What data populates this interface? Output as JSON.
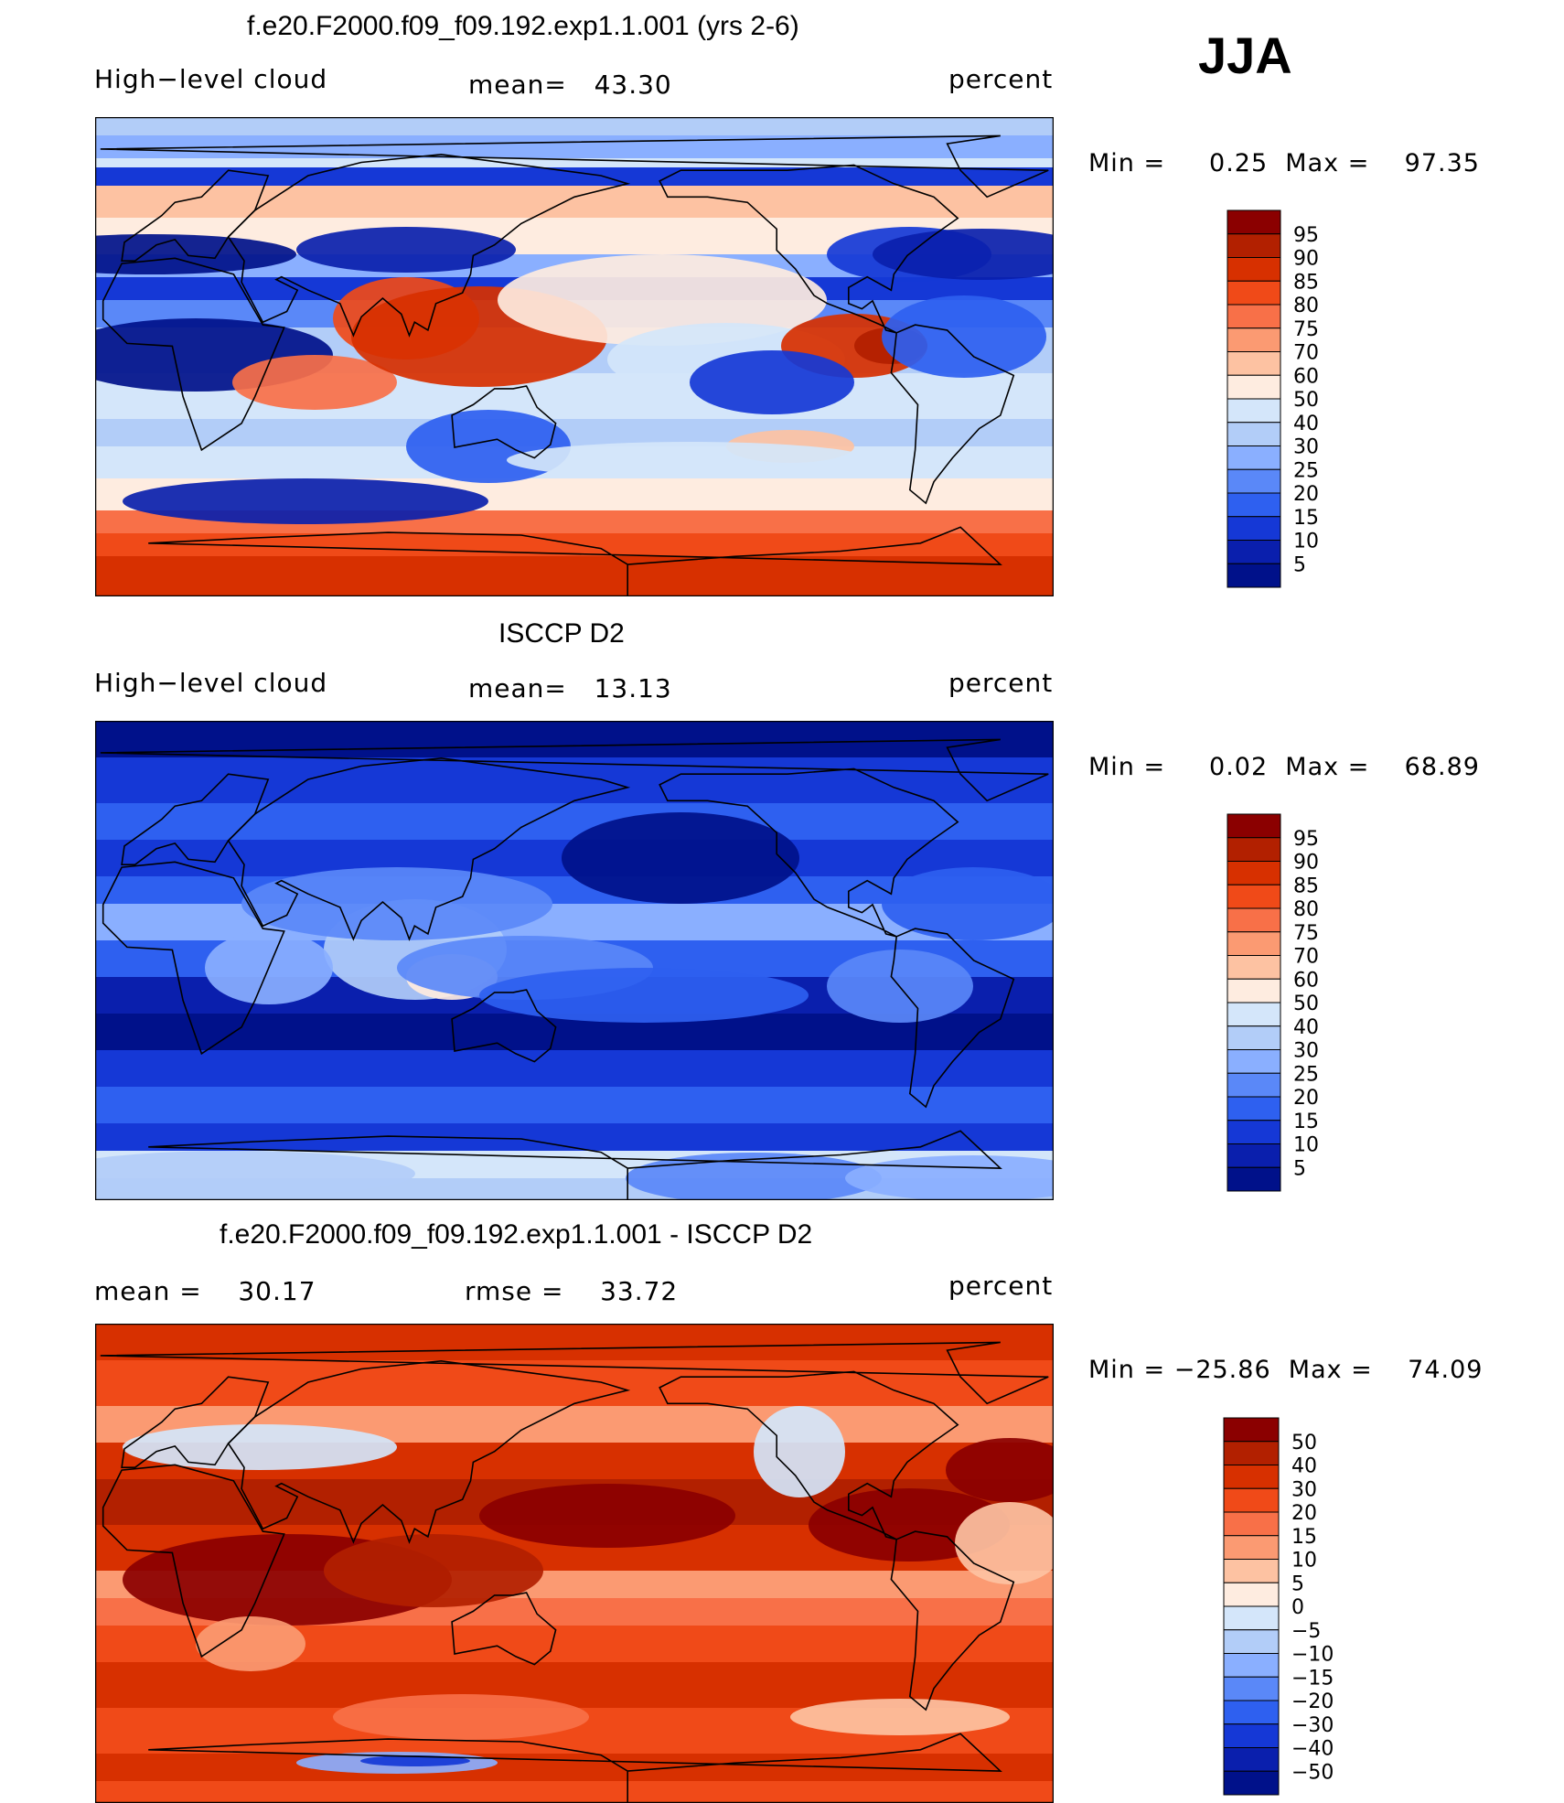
{
  "season": "JJA",
  "chart_data": [
    {
      "type": "heatmap",
      "title": "f.e20.F2000.f09_f09.192.exp1.1.001 (yrs 2-6)",
      "left_label": "High−level cloud",
      "center_label": "mean=   43.30",
      "units": "percent",
      "min_max": "Min =     0.25  Max =    97.35",
      "colorbar": {
        "levels": [
          "95",
          "90",
          "85",
          "80",
          "75",
          "70",
          "60",
          "50",
          "40",
          "30",
          "25",
          "20",
          "15",
          "10",
          "5"
        ],
        "colors": [
          "#8b0000",
          "#b22000",
          "#d73000",
          "#f04a18",
          "#f87048",
          "#fb9a72",
          "#fdc2a2",
          "#feece0",
          "#d4e6fa",
          "#b2cdf8",
          "#8aafff",
          "#5a88f8",
          "#2e60f0",
          "#1538d6",
          "#0a1fad",
          "#00118a"
        ]
      },
      "field": "model"
    },
    {
      "type": "heatmap",
      "title": "ISCCP D2",
      "left_label": "High−level cloud",
      "center_label": "mean=   13.13",
      "units": "percent",
      "min_max": "Min =     0.02  Max =    68.89",
      "colorbar": {
        "levels": [
          "95",
          "90",
          "85",
          "80",
          "75",
          "70",
          "60",
          "50",
          "40",
          "30",
          "25",
          "20",
          "15",
          "10",
          "5"
        ],
        "colors": [
          "#8b0000",
          "#b22000",
          "#d73000",
          "#f04a18",
          "#f87048",
          "#fb9a72",
          "#fdc2a2",
          "#feece0",
          "#d4e6fa",
          "#b2cdf8",
          "#8aafff",
          "#5a88f8",
          "#2e60f0",
          "#1538d6",
          "#0a1fad",
          "#00118a"
        ]
      },
      "field": "obs"
    },
    {
      "type": "heatmap",
      "title": "f.e20.F2000.f09_f09.192.exp1.1.001 - ISCCP D2",
      "left_label": "mean =    30.17",
      "center_label": "rmse =    33.72",
      "units": "percent",
      "min_max": "Min = −25.86  Max =    74.09",
      "colorbar": {
        "levels": [
          "50",
          "40",
          "30",
          "20",
          "15",
          "10",
          "5",
          "0",
          "−5",
          "−10",
          "−15",
          "−20",
          "−30",
          "−40",
          "−50"
        ],
        "colors": [
          "#8b0000",
          "#b22000",
          "#d73000",
          "#f04a18",
          "#f87048",
          "#fb9a72",
          "#fdc2a2",
          "#feece0",
          "#d4e6fa",
          "#b2cdf8",
          "#8aafff",
          "#5a88f8",
          "#2e60f0",
          "#1538d6",
          "#0a1fad",
          "#00118a"
        ]
      },
      "field": "diff"
    }
  ]
}
